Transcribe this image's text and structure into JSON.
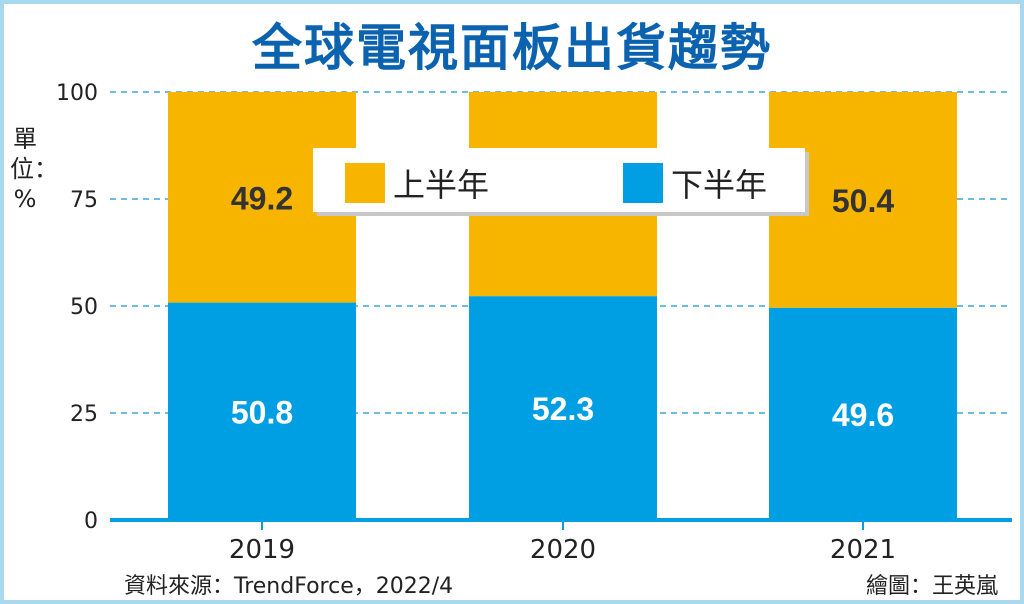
{
  "chart_data": {
    "type": "bar",
    "stacked": true,
    "title": "全球電視面板出貨趨勢",
    "ylabel": "單位：%",
    "ylabel_chars": [
      "單",
      "位",
      "：",
      "%"
    ],
    "categories": [
      "2019",
      "2020",
      "2021"
    ],
    "yticks": [
      0,
      25,
      50,
      75,
      100
    ],
    "ylim": [
      0,
      100
    ],
    "grid": true,
    "legend_placement": "top-center",
    "series": [
      {
        "name": "下半年",
        "color": "#009fe3",
        "label_color": "#ffffff",
        "values": [
          50.8,
          52.3,
          49.6
        ]
      },
      {
        "name": "上半年",
        "color": "#f7b500",
        "label_color": "#333333",
        "values": [
          49.2,
          47.7,
          50.4
        ]
      }
    ]
  },
  "legend": [
    {
      "label": "上半年",
      "color": "#f7b500"
    },
    {
      "label": "下半年",
      "color": "#009fe3"
    }
  ],
  "source": "資料來源：TrendForce，2022/4",
  "credit": "繪圖：王英嵐"
}
